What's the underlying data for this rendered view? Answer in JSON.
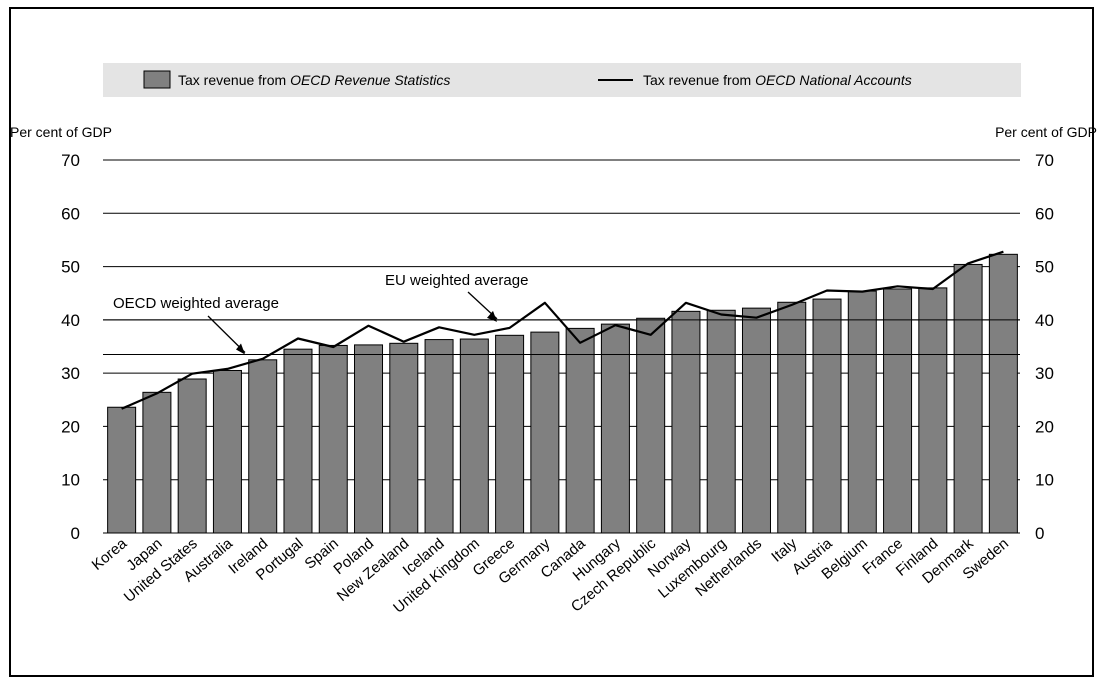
{
  "chart_data": {
    "type": "bar",
    "legend": {
      "bar_prefix": "Tax revenue from ",
      "bar_italic": "OECD Revenue Statistics",
      "line_prefix": "Tax revenue from ",
      "line_italic": "OECD National Accounts",
      "position": "top"
    },
    "ylabel_left": "Per cent of GDP",
    "ylabel_right": "Per cent of GDP",
    "ylim": [
      0,
      70
    ],
    "yticks": [
      "0",
      "10",
      "20",
      "30",
      "40",
      "50",
      "60",
      "70"
    ],
    "categories": [
      "Korea",
      "Japan",
      "United States",
      "Australia",
      "Ireland",
      "Portugal",
      "Spain",
      "Poland",
      "New Zealand",
      "Iceland",
      "United Kingdom",
      "Greece",
      "Germany",
      "Canada",
      "Hungary",
      "Czech Republic",
      "Norway",
      "Luxembourg",
      "Netherlands",
      "Italy",
      "Austria",
      "Belgium",
      "France",
      "Finland",
      "Denmark",
      "Sweden"
    ],
    "series": [
      {
        "name": "Tax revenue from OECD Revenue Statistics",
        "kind": "bar",
        "color": "#808080",
        "values": [
          23.6,
          26.4,
          28.9,
          30.5,
          32.5,
          34.5,
          35.2,
          35.3,
          35.6,
          36.3,
          36.4,
          37.1,
          37.7,
          38.4,
          39.2,
          40.3,
          41.6,
          41.8,
          42.2,
          43.3,
          43.9,
          45.4,
          45.8,
          46.0,
          50.4,
          52.3
        ]
      },
      {
        "name": "Tax revenue from OECD National Accounts",
        "kind": "line",
        "color": "#000000",
        "values": [
          23.3,
          26.2,
          29.9,
          30.8,
          32.7,
          36.5,
          34.9,
          38.9,
          35.9,
          38.6,
          37.2,
          38.5,
          43.2,
          35.7,
          39.0,
          37.2,
          43.2,
          41.0,
          40.4,
          42.8,
          45.5,
          45.3,
          46.3,
          45.8,
          50.6,
          52.8
        ]
      }
    ],
    "reference_lines": [
      {
        "label": "OECD weighted average",
        "value": 33.5
      },
      {
        "label": "EU weighted average",
        "value": 40.0
      }
    ],
    "grid": true
  }
}
